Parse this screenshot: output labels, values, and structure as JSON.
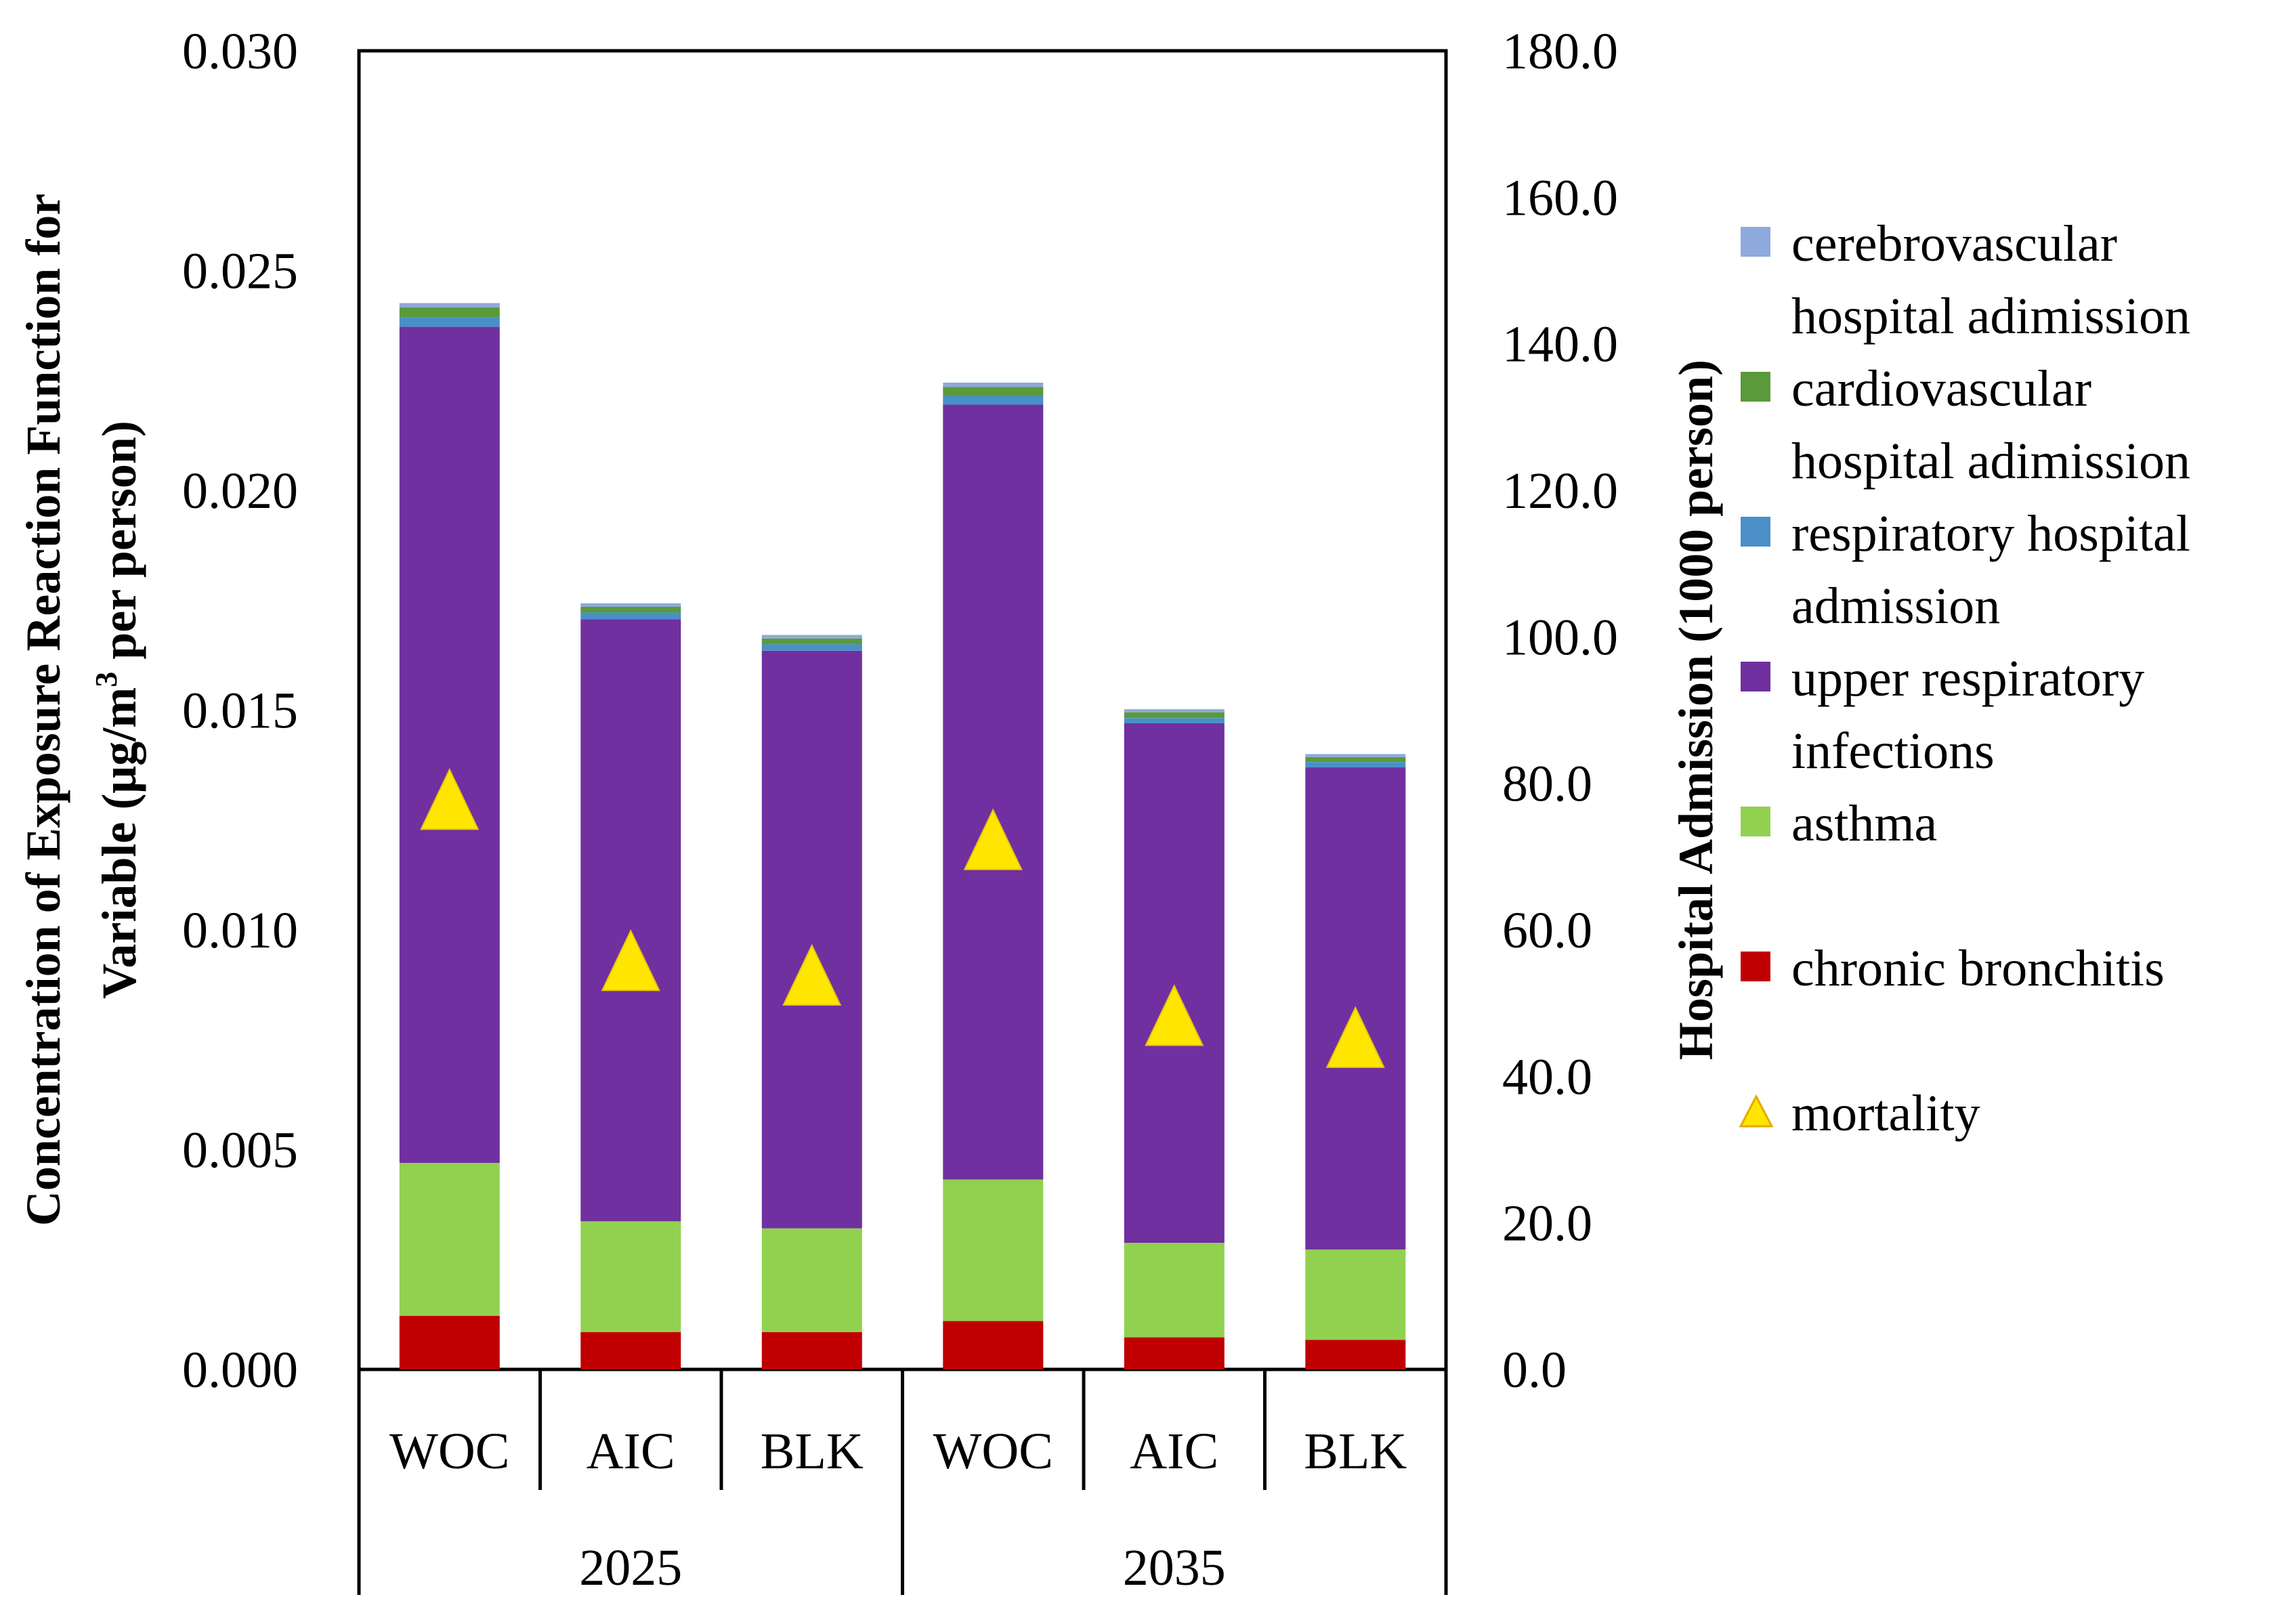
{
  "chart_data": {
    "type": "bar",
    "stacked": true,
    "groups": [
      "2025",
      "2035"
    ],
    "categories": [
      "WOC",
      "AIC",
      "BLK",
      "WOC",
      "AIC",
      "BLK"
    ],
    "series": [
      {
        "name": "chronic bronchitis",
        "color": "#c00000",
        "values": [
          0.00122,
          0.00085,
          0.00085,
          0.0011,
          0.00073,
          0.00067
        ]
      },
      {
        "name": "asthma",
        "color": "#92d050",
        "values": [
          0.00348,
          0.00252,
          0.00236,
          0.00322,
          0.00215,
          0.00206
        ]
      },
      {
        "name": "upper respiratory infections",
        "color": "#7030a0",
        "values": [
          0.01902,
          0.0137,
          0.01314,
          0.01763,
          0.01182,
          0.01097
        ]
      },
      {
        "name": "respiratory hospital admission",
        "color": "#4a8fc7",
        "values": [
          0.00022,
          0.00015,
          0.00015,
          0.0002,
          0.00012,
          0.00012
        ]
      },
      {
        "name": "cardiovascular hospital adimission",
        "color": "#5a9a3a",
        "values": [
          0.00022,
          0.00013,
          0.00013,
          0.0002,
          0.00013,
          0.00011
        ]
      },
      {
        "name": "cerebrovascular hospital adimission",
        "color": "#8ea9db",
        "values": [
          0.0001,
          8e-05,
          8e-05,
          0.0001,
          7e-05,
          7e-05
        ]
      }
    ],
    "line_series": {
      "name": "mortality",
      "marker": "triangle",
      "color": "#ffe600",
      "axis": "right",
      "values": [
        77.0,
        55.0,
        53.0,
        71.5,
        47.5,
        44.5
      ]
    },
    "ylim": [
      0,
      0.03
    ],
    "y_ticks": [
      "0.000",
      "0.005",
      "0.010",
      "0.015",
      "0.020",
      "0.025",
      "0.030"
    ],
    "y2lim": [
      0,
      180
    ],
    "y2_ticks": [
      "0.0",
      "20.0",
      "40.0",
      "60.0",
      "80.0",
      "100.0",
      "120.0",
      "140.0",
      "160.0",
      "180.0"
    ],
    "ylabel_line1": "Concentration of Exposure Reaction Function for",
    "ylabel_line2_prefix": "Variable (μg/m",
    "ylabel_sup": "3",
    "ylabel_line2_suffix": "  per person)",
    "y2label": "Hospital Admission (1000 person)",
    "legend": {
      "position": "right",
      "items": [
        {
          "lines": [
            "cerebrovascular",
            "hospital adimission"
          ],
          "color": "#8ea9db",
          "marker": "square"
        },
        {
          "lines": [
            "cardiovascular",
            "hospital adimission"
          ],
          "color": "#5a9a3a",
          "marker": "square"
        },
        {
          "lines": [
            "respiratory hospital",
            "admission"
          ],
          "color": "#4a8fc7",
          "marker": "square"
        },
        {
          "lines": [
            "upper respiratory",
            "infections"
          ],
          "color": "#7030a0",
          "marker": "square"
        },
        {
          "lines": [
            "asthma"
          ],
          "color": "#92d050",
          "marker": "square"
        },
        {
          "lines": [
            "chronic bronchitis"
          ],
          "color": "#c00000",
          "marker": "square"
        },
        {
          "lines": [
            "mortality"
          ],
          "color": "#ffe600",
          "marker": "triangle"
        }
      ]
    },
    "grid": false
  }
}
